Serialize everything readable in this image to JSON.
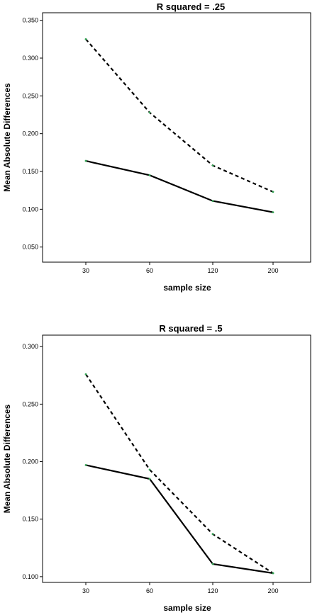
{
  "chart_data": [
    {
      "type": "line",
      "title": "R squared = .25",
      "xlabel": "sample size",
      "ylabel": "Mean Absolute Differences",
      "categories": [
        "30",
        "60",
        "120",
        "200"
      ],
      "ylim": [
        0.03,
        0.36
      ],
      "yticks": [
        "0.050",
        "0.100",
        "0.150",
        "0.200",
        "0.250",
        "0.300",
        "0.350"
      ],
      "grid": false,
      "series": [
        {
          "style": "dashed",
          "color": "#000000",
          "values": [
            0.325,
            0.228,
            0.158,
            0.123
          ]
        },
        {
          "style": "solid",
          "color": "#000000",
          "values": [
            0.164,
            0.145,
            0.111,
            0.096
          ]
        }
      ]
    },
    {
      "type": "line",
      "title": "R squared = .5",
      "xlabel": "sample size",
      "ylabel": "Mean Absolute Differences",
      "categories": [
        "30",
        "60",
        "120",
        "200"
      ],
      "ylim": [
        0.095,
        0.31
      ],
      "yticks": [
        "0.100",
        "0.150",
        "0.200",
        "0.250",
        "0.300"
      ],
      "grid": false,
      "series": [
        {
          "style": "dashed",
          "color": "#000000",
          "values": [
            0.276,
            0.193,
            0.137,
            0.103
          ]
        },
        {
          "style": "solid",
          "color": "#000000",
          "values": [
            0.197,
            0.185,
            0.111,
            0.103
          ]
        }
      ]
    }
  ],
  "colors": {
    "point_marker": "#3aa85a",
    "axis": "#000000",
    "background": "#ffffff"
  }
}
